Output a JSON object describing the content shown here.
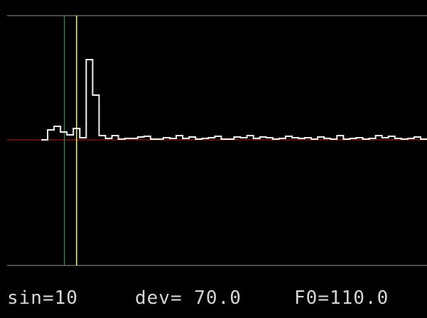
{
  "readout": {
    "sin": "sin=10",
    "dev": "dev= 70.0",
    "f0": "F0=110.0"
  },
  "colors": {
    "background": "#000000",
    "frame": "#8f9690",
    "trace": "#f2f2f2",
    "baseline": "#b01e1e",
    "cursor_green": "#2f9a3a",
    "cursor_yellow": "#e8e84a",
    "text": "#d6d6d6"
  },
  "chart_data": {
    "type": "line",
    "grid": false,
    "baseline_level": 0,
    "series": [
      {
        "x": [
          0,
          1,
          2,
          3,
          4,
          5,
          6,
          7,
          8,
          9,
          10,
          11,
          12,
          13,
          14,
          15,
          16,
          17,
          18,
          19,
          20,
          21,
          22,
          23,
          24,
          25,
          26,
          27,
          28,
          29,
          30,
          31,
          32,
          33,
          34,
          35,
          36,
          37,
          38,
          39,
          40,
          41,
          42,
          43,
          44,
          45,
          46,
          47,
          48,
          49,
          50,
          51,
          52,
          53,
          54,
          55,
          56,
          57,
          58,
          59,
          60
        ],
        "y": [
          0,
          1.4,
          1.9,
          1.1,
          0.7,
          1.6,
          0.3,
          11.3,
          6.3,
          0.6,
          0.2,
          0.6,
          0.1,
          0.2,
          0.2,
          0.4,
          0.5,
          0.1,
          0.1,
          0.3,
          0.2,
          0.6,
          0.2,
          0.4,
          0.1,
          0.2,
          0.3,
          0.5,
          0.1,
          0.1,
          0.4,
          0.3,
          0.6,
          0.2,
          0.4,
          0.3,
          0.1,
          0.2,
          0.5,
          0.3,
          0.2,
          0.3,
          0.1,
          0.4,
          0.2,
          0.1,
          0.6,
          0.1,
          0.2,
          0.3,
          0.1,
          0.2,
          0.6,
          0.3,
          0.5,
          0.2,
          0.1,
          0.2,
          0.4,
          0.1,
          0
        ]
      }
    ],
    "cursors": [
      {
        "name": "green",
        "x": 3.6
      },
      {
        "name": "yellow",
        "x": 5.5
      }
    ]
  }
}
